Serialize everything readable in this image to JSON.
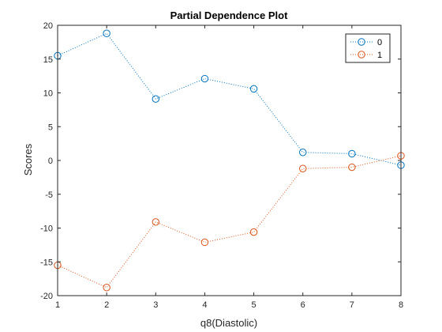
{
  "chart_data": {
    "type": "line",
    "title": "Partial Dependence Plot",
    "xlabel": "q8(Diastolic)",
    "ylabel": "Scores",
    "x": [
      1,
      2,
      3,
      4,
      5,
      6,
      7,
      8
    ],
    "xlim": [
      1,
      8
    ],
    "ylim": [
      -20,
      20
    ],
    "xticks": [
      1,
      2,
      3,
      4,
      5,
      6,
      7,
      8
    ],
    "yticks": [
      -20,
      -15,
      -10,
      -5,
      0,
      5,
      10,
      15,
      20
    ],
    "grid": false,
    "legend_position": "top-right",
    "line_style": "dotted",
    "marker": "circle",
    "series": [
      {
        "name": "0",
        "color": "#0072BD",
        "values": [
          15.5,
          18.8,
          9.1,
          12.1,
          10.6,
          1.2,
          1.0,
          -0.7
        ]
      },
      {
        "name": "1",
        "color": "#D95319",
        "values": [
          -15.5,
          -18.8,
          -9.1,
          -12.1,
          -10.6,
          -1.2,
          -1.0,
          0.7
        ]
      }
    ]
  }
}
